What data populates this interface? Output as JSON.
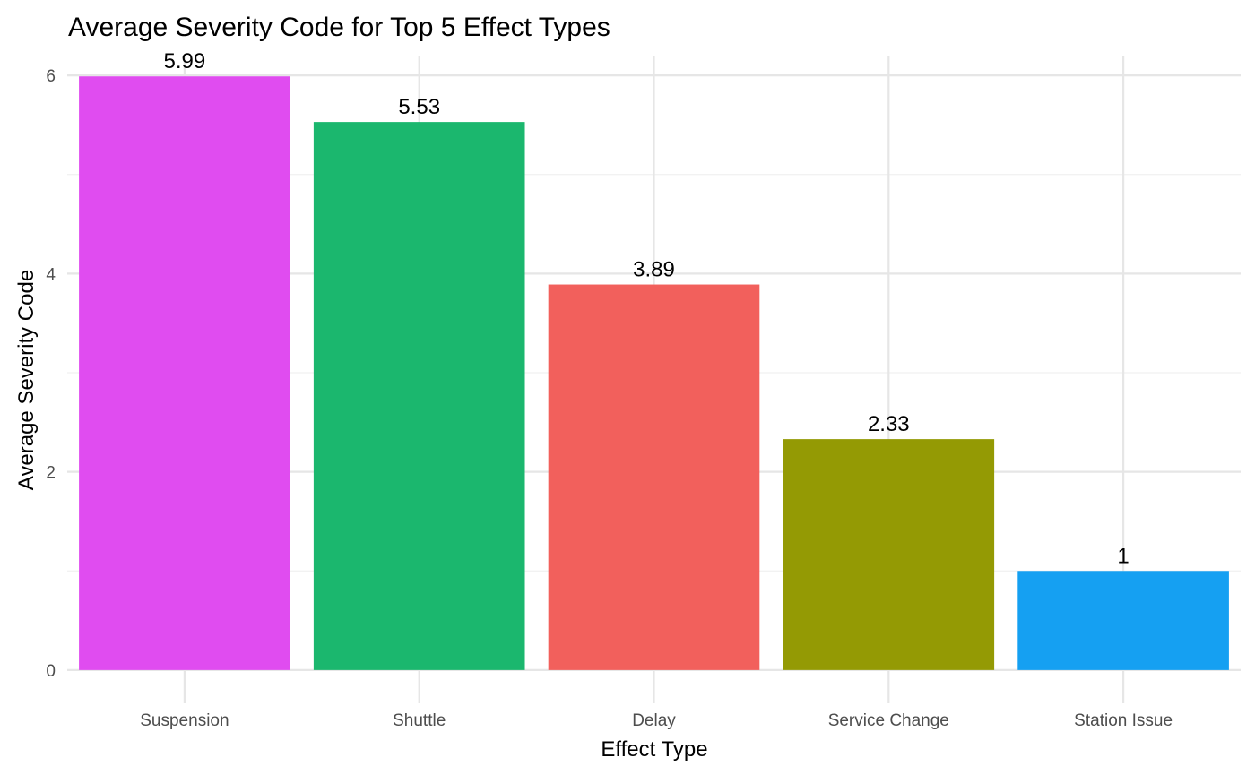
{
  "chart_data": {
    "type": "bar",
    "title": "Average Severity Code for Top 5 Effect Types",
    "xlabel": "Effect Type",
    "ylabel": "Average Severity Code",
    "categories": [
      "Suspension",
      "Shuttle",
      "Delay",
      "Service Change",
      "Station Issue"
    ],
    "values": [
      5.99,
      5.53,
      3.89,
      2.33,
      1
    ],
    "data_labels": [
      "5.99",
      "5.53",
      "3.89",
      "2.33",
      "1"
    ],
    "colors": [
      "#E04CF0",
      "#1BB76E",
      "#F2605C",
      "#949A04",
      "#15A0F2"
    ],
    "ylim": [
      -0.2,
      6.2
    ],
    "yticks": [
      0,
      2,
      4,
      6
    ],
    "ytick_labels": [
      "0",
      "2",
      "4",
      "6"
    ],
    "grid": true,
    "legend": "none"
  }
}
